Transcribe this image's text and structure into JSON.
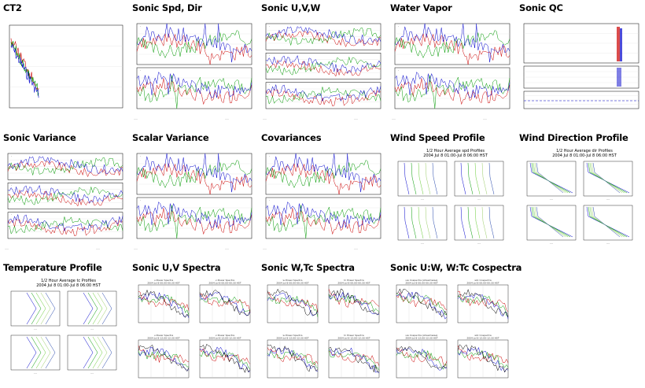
{
  "page": {
    "cells": [
      {
        "title": "CT2",
        "image": "ct2-plot"
      },
      {
        "title": "Sonic Spd, Dir",
        "image": "sonic-spd-dir-plot"
      },
      {
        "title": "Sonic U,V,W",
        "image": "sonic-uvw-plot"
      },
      {
        "title": "Water Vapor",
        "image": "water-vapor-plot"
      },
      {
        "title": "Sonic QC",
        "image": "sonic-qc-plot"
      },
      {
        "title": "Sonic Variance",
        "image": "sonic-variance-plot"
      },
      {
        "title": "Scalar Variance",
        "image": "scalar-variance-plot"
      },
      {
        "title": "Covariances",
        "image": "covariances-plot"
      },
      {
        "title": "Wind Speed Profile",
        "image": "wind-speed-profile-plot",
        "subtitle1": "1/2 Hour Average spd Profiles",
        "subtitle2": "2004 Jul 8 01:00-Jul 8 06:00 HST"
      },
      {
        "title": "Wind Direction Profile",
        "image": "wind-direction-profile-plot",
        "subtitle1": "1/2 Hour Average dir Profiles",
        "subtitle2": "2004 Jul 8 01:00-Jul 8 06:00 HST"
      },
      {
        "title": "Temperature Profile",
        "image": "temperature-profile-plot",
        "subtitle1": "1/2 Hour Average tc Profiles",
        "subtitle2": "2004 Jul 8 01:00-Jul 8 06:00 HST"
      },
      {
        "title": "Sonic U,V Spectra",
        "image": "sonic-uv-spectra-plot"
      },
      {
        "title": "Sonic W,Tc Spectra",
        "image": "sonic-wtc-spectra-plot"
      },
      {
        "title": "Sonic U:W, W:Tc Cospectra",
        "image": "sonic-uw-wtc-cospectra-plot"
      }
    ],
    "spectra": {
      "uv": [
        "u Power Spectra",
        "2004 Jul 8 00:00-00:30 HST",
        "v Power Spectra",
        "2004 Jul 8 00:00-00:30 HST",
        "u Power Spectra",
        "2004 Jul 8 12:00-12:30 HST",
        "v Power Spectra",
        "2004 Jul 8 12:00-12:30 HST"
      ],
      "wtc": [
        "w Power Spectra",
        "2004 Jul 8 00:00-00:30 HST",
        "tc Power Spectra",
        "2004 Jul 8 00:00-00:30 HST",
        "w Power Spectra",
        "2004 Jul 8 12:00-12:30 HST",
        "tc Power Spectra",
        "2004 Jul 8 12:00-12:30 HST"
      ],
      "co": [
        "uw Cospectra (streamwise)",
        "2004 Jul 8 00:00-00:30 HST",
        "wtc Cospectra",
        "2004 Jul 8 00:00-00:30 HST",
        "uw Cospectra (streamwise)",
        "2004 Jul 8 12:00-12:30 HST",
        "wtc Cospectra",
        "2004 Jul 8 12:00-12:30 HST"
      ]
    },
    "colors": {
      "series1": "#0000cc",
      "series2": "#cc0000",
      "series3": "#009900",
      "series4": "#66cc33"
    }
  }
}
